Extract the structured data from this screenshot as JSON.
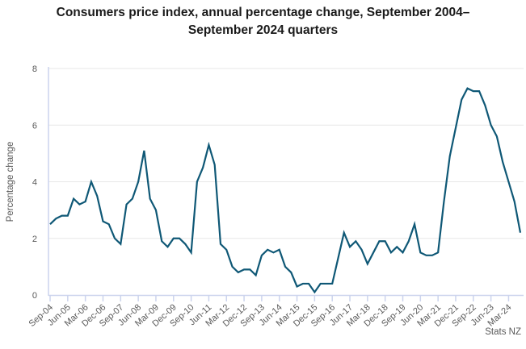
{
  "title": "Consumers price index, annual percentage change, September 2004–September 2024 quarters",
  "source": "Stats NZ",
  "colors": {
    "line": "#0f5876",
    "axis_line": "#ccd4ed",
    "gridline": "#e7e7e7",
    "axis_text": "#595959",
    "title_text": "#1a1a1a"
  },
  "chart_data": {
    "type": "line",
    "title": "Consumers price index, annual percentage change, September 2004–September 2024 quarters",
    "xlabel": "",
    "ylabel": "Percentage change",
    "ylim": [
      0,
      8
    ],
    "yticks": [
      0,
      2,
      4,
      6,
      8
    ],
    "xtick_every": 3,
    "grid": "horizontal",
    "legend": "none",
    "categories": [
      "Sep-04",
      "Dec-04",
      "Mar-05",
      "Jun-05",
      "Sep-05",
      "Dec-05",
      "Mar-06",
      "Jun-06",
      "Sep-06",
      "Dec-06",
      "Mar-07",
      "Jun-07",
      "Sep-07",
      "Dec-07",
      "Mar-08",
      "Jun-08",
      "Sep-08",
      "Dec-08",
      "Mar-09",
      "Jun-09",
      "Sep-09",
      "Dec-09",
      "Mar-10",
      "Jun-10",
      "Sep-10",
      "Dec-10",
      "Mar-11",
      "Jun-11",
      "Sep-11",
      "Dec-11",
      "Mar-12",
      "Jun-12",
      "Sep-12",
      "Dec-12",
      "Mar-13",
      "Jun-13",
      "Sep-13",
      "Dec-13",
      "Mar-14",
      "Jun-14",
      "Sep-14",
      "Dec-14",
      "Mar-15",
      "Jun-15",
      "Sep-15",
      "Dec-15",
      "Mar-16",
      "Jun-16",
      "Sep-16",
      "Dec-16",
      "Mar-17",
      "Jun-17",
      "Sep-17",
      "Dec-17",
      "Mar-18",
      "Jun-18",
      "Sep-18",
      "Dec-18",
      "Mar-19",
      "Jun-19",
      "Sep-19",
      "Dec-19",
      "Mar-20",
      "Jun-20",
      "Sep-20",
      "Dec-20",
      "Mar-21",
      "Jun-21",
      "Sep-21",
      "Dec-21",
      "Mar-22",
      "Jun-22",
      "Sep-22",
      "Dec-22",
      "Mar-23",
      "Jun-23",
      "Sep-23",
      "Dec-23",
      "Mar-24",
      "Jun-24",
      "Sep-24"
    ],
    "values": [
      2.5,
      2.7,
      2.8,
      2.8,
      3.4,
      3.2,
      3.3,
      4.0,
      3.5,
      2.6,
      2.5,
      2.0,
      1.8,
      3.2,
      3.4,
      4.0,
      5.1,
      3.4,
      3.0,
      1.9,
      1.7,
      2.0,
      2.0,
      1.8,
      1.5,
      4.0,
      4.5,
      5.3,
      4.6,
      1.8,
      1.6,
      1.0,
      0.8,
      0.9,
      0.9,
      0.7,
      1.4,
      1.6,
      1.5,
      1.6,
      1.0,
      0.8,
      0.3,
      0.4,
      0.4,
      0.1,
      0.4,
      0.4,
      0.4,
      1.3,
      2.2,
      1.7,
      1.9,
      1.6,
      1.1,
      1.5,
      1.9,
      1.9,
      1.5,
      1.7,
      1.5,
      1.9,
      2.5,
      1.5,
      1.4,
      1.4,
      1.5,
      3.3,
      4.9,
      5.9,
      6.9,
      7.3,
      7.2,
      7.2,
      6.7,
      6.0,
      5.6,
      4.7,
      4.0,
      3.3,
      2.2
    ]
  }
}
